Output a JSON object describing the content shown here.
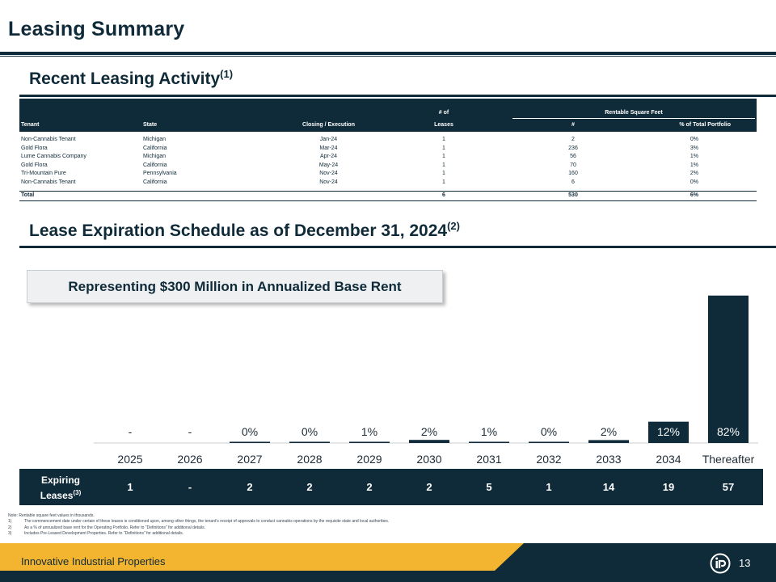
{
  "header": {
    "title": "Leasing Summary"
  },
  "sections": {
    "recent": {
      "title": "Recent Leasing Activity",
      "note_ref": "(1)"
    },
    "expiration": {
      "title": "Lease Expiration Schedule as of December 31, 2024",
      "note_ref": "(2)"
    }
  },
  "lease_table": {
    "header": {
      "tenant": "Tenant",
      "state": "State",
      "closing": "Closing / Execution",
      "leases_top": "# of",
      "leases_bottom": "Leases",
      "rsf_group": "Rentable Square Feet",
      "rsf_num": "#",
      "rsf_pct": "% of Total Portfolio"
    },
    "rows": [
      {
        "tenant": "Non-Cannabis Tenant",
        "state": "Michigan",
        "closing": "Jan-24",
        "leases": "1",
        "sf": "2",
        "pct": "0%"
      },
      {
        "tenant": "Gold Flora",
        "state": "California",
        "closing": "Mar-24",
        "leases": "1",
        "sf": "236",
        "pct": "3%"
      },
      {
        "tenant": "Lume Cannabis Company",
        "state": "Michigan",
        "closing": "Apr-24",
        "leases": "1",
        "sf": "56",
        "pct": "1%"
      },
      {
        "tenant": "Gold Flora",
        "state": "California",
        "closing": "May-24",
        "leases": "1",
        "sf": "70",
        "pct": "1%"
      },
      {
        "tenant": "Tri-Mountain Pure",
        "state": "Pennsylvania",
        "closing": "Nov-24",
        "leases": "1",
        "sf": "160",
        "pct": "2%"
      },
      {
        "tenant": "Non-Cannabis Tenant",
        "state": "California",
        "closing": "Nov-24",
        "leases": "1",
        "sf": "6",
        "pct": "0%"
      }
    ],
    "total": {
      "label": "Total",
      "leases": "6",
      "sf": "530",
      "pct": "6%"
    }
  },
  "callout": {
    "text": "Representing $300 Million in Annualized Base Rent"
  },
  "chart_data": {
    "type": "bar",
    "categories": [
      "2025",
      "2026",
      "2027",
      "2028",
      "2029",
      "2030",
      "2031",
      "2032",
      "2033",
      "2034",
      "Thereafter"
    ],
    "values": [
      0,
      0,
      0.3,
      0.3,
      0.6,
      1.7,
      0.5,
      0.3,
      1.6,
      11.8,
      81.7
    ],
    "data_labels": [
      "-",
      "-",
      "0%",
      "0%",
      "1%",
      "2%",
      "1%",
      "0%",
      "2%",
      "12%",
      "82%"
    ],
    "ylabel": "",
    "ylim": [
      0,
      82
    ],
    "grid": false,
    "color": "#0f2a38"
  },
  "expiring": {
    "label": "Expiring Leases",
    "note_ref": "(3)",
    "values": [
      "1",
      "-",
      "2",
      "2",
      "2",
      "2",
      "5",
      "1",
      "14",
      "19",
      "57"
    ]
  },
  "notes": {
    "intro": "Note: Rentable square feet values in thousands.",
    "items": [
      {
        "num": "1)",
        "text": "The commencement date under certain of these leases is conditioned upon, among other things, the tenant's receipt of approvals to conduct cannabis operations by the requisite state and local authorities."
      },
      {
        "num": "2)",
        "text": "As a % of annualized base rent for the Operating Portfolio. Refer to \"Definitions\" for additional details."
      },
      {
        "num": "3)",
        "text": "Includes Pre-Leased Development Properties. Refer to \"Definitions\" for additional details."
      }
    ]
  },
  "footer": {
    "company": "Innovative Industrial Properties",
    "page": "13"
  },
  "colors": {
    "navy": "#0f2a38",
    "gold": "#f3b430"
  }
}
